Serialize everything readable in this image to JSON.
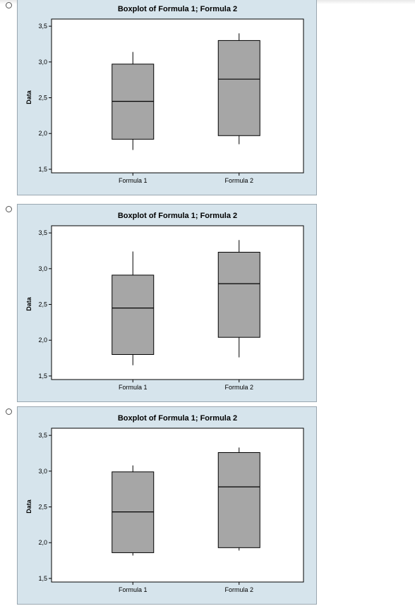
{
  "options": [
    {
      "selected": false,
      "chart_data": {
        "type": "boxplot",
        "title": "Boxplot of Formula 1; Formula 2",
        "ylabel": "Data",
        "xlabel": "",
        "ylim": [
          1.45,
          3.6
        ],
        "yticks": [
          1.5,
          2.0,
          2.5,
          3.0,
          3.5
        ],
        "ytick_labels": [
          "1,5",
          "2,0",
          "2,5",
          "3,0",
          "3,5"
        ],
        "categories": [
          "Formula 1",
          "Formula 2"
        ],
        "boxes": [
          {
            "name": "Formula 1",
            "min": 1.77,
            "q1": 1.92,
            "median": 2.45,
            "q3": 2.97,
            "max": 3.14
          },
          {
            "name": "Formula 2",
            "min": 1.85,
            "q1": 1.97,
            "median": 2.76,
            "q3": 3.3,
            "max": 3.4
          }
        ],
        "box_color": "#a6a6a6"
      }
    },
    {
      "selected": false,
      "chart_data": {
        "type": "boxplot",
        "title": "Boxplot of Formula 1; Formula 2",
        "ylabel": "Data",
        "xlabel": "",
        "ylim": [
          1.45,
          3.6
        ],
        "yticks": [
          1.5,
          2.0,
          2.5,
          3.0,
          3.5
        ],
        "ytick_labels": [
          "1,5",
          "2,0",
          "2,5",
          "3,0",
          "3,5"
        ],
        "categories": [
          "Formula 1",
          "Formula 2"
        ],
        "boxes": [
          {
            "name": "Formula 1",
            "min": 1.65,
            "q1": 1.8,
            "median": 2.45,
            "q3": 2.91,
            "max": 3.24
          },
          {
            "name": "Formula 2",
            "min": 1.76,
            "q1": 2.04,
            "median": 2.79,
            "q3": 3.23,
            "max": 3.4
          }
        ],
        "box_color": "#a6a6a6"
      }
    },
    {
      "selected": false,
      "chart_data": {
        "type": "boxplot",
        "title": "Boxplot of Formula 1; Formula 2",
        "ylabel": "Data",
        "xlabel": "",
        "ylim": [
          1.45,
          3.6
        ],
        "yticks": [
          1.5,
          2.0,
          2.5,
          3.0,
          3.5
        ],
        "ytick_labels": [
          "1,5",
          "2,0",
          "2,5",
          "3,0",
          "3,5"
        ],
        "categories": [
          "Formula 1",
          "Formula 2"
        ],
        "boxes": [
          {
            "name": "Formula 1",
            "min": 1.82,
            "q1": 1.86,
            "median": 2.43,
            "q3": 2.99,
            "max": 3.08
          },
          {
            "name": "Formula 2",
            "min": 1.89,
            "q1": 1.93,
            "median": 2.78,
            "q3": 3.26,
            "max": 3.33
          }
        ],
        "box_color": "#a6a6a6"
      }
    }
  ]
}
